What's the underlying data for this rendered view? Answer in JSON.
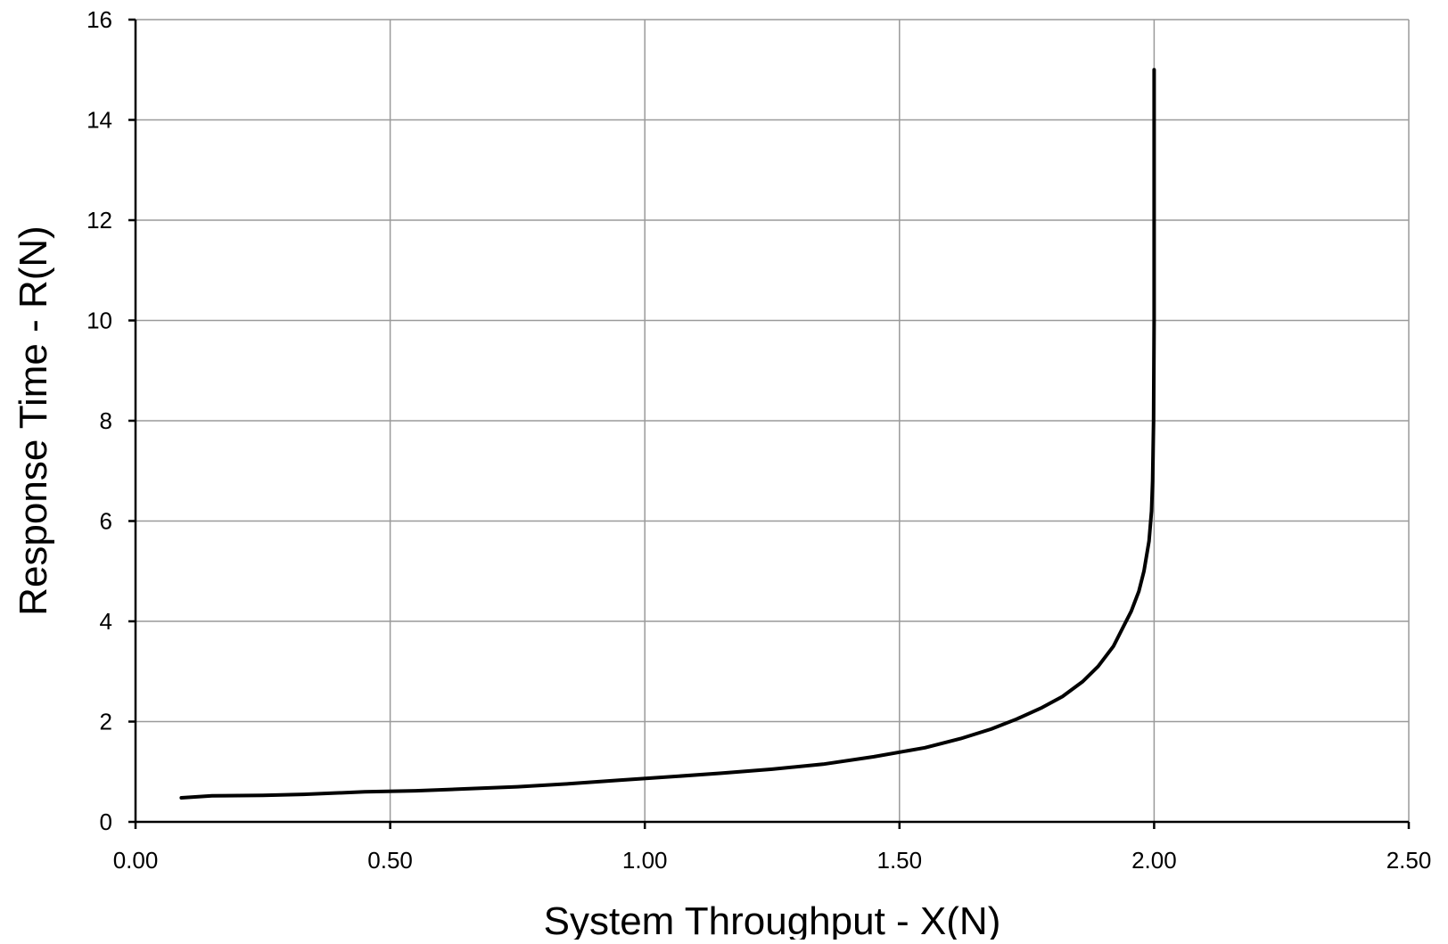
{
  "chart_data": {
    "type": "line",
    "title": "",
    "xlabel": "System Throughput - X(N)",
    "ylabel": "Response Time - R(N)",
    "xlim": [
      0,
      2.5
    ],
    "ylim": [
      0,
      16
    ],
    "x_ticks": [
      0,
      0.5,
      1.0,
      1.5,
      2.0,
      2.5
    ],
    "x_tick_labels": [
      "0.00",
      "0.50",
      "1.00",
      "1.50",
      "2.00",
      "2.50"
    ],
    "y_ticks": [
      0,
      2,
      4,
      6,
      8,
      10,
      12,
      14,
      16
    ],
    "y_tick_labels": [
      "0",
      "2",
      "4",
      "6",
      "8",
      "10",
      "12",
      "14",
      "16"
    ],
    "grid": true,
    "legend": "none",
    "series": [
      {
        "color": "#000000",
        "x": [
          0.09,
          0.15,
          0.25,
          0.33,
          0.45,
          0.55,
          0.65,
          0.75,
          0.85,
          0.95,
          1.05,
          1.15,
          1.25,
          1.35,
          1.45,
          1.55,
          1.62,
          1.68,
          1.73,
          1.78,
          1.82,
          1.86,
          1.89,
          1.92,
          1.94,
          1.955,
          1.97,
          1.98,
          1.99,
          1.995,
          1.997,
          1.999,
          2.0,
          2.0,
          2.0
        ],
        "y": [
          0.48,
          0.52,
          0.53,
          0.55,
          0.6,
          0.62,
          0.66,
          0.7,
          0.76,
          0.83,
          0.9,
          0.97,
          1.05,
          1.15,
          1.3,
          1.48,
          1.66,
          1.85,
          2.05,
          2.28,
          2.5,
          2.8,
          3.1,
          3.5,
          3.9,
          4.2,
          4.6,
          5.0,
          5.6,
          6.2,
          6.8,
          8.0,
          10.0,
          12.5,
          15.0
        ]
      }
    ]
  }
}
